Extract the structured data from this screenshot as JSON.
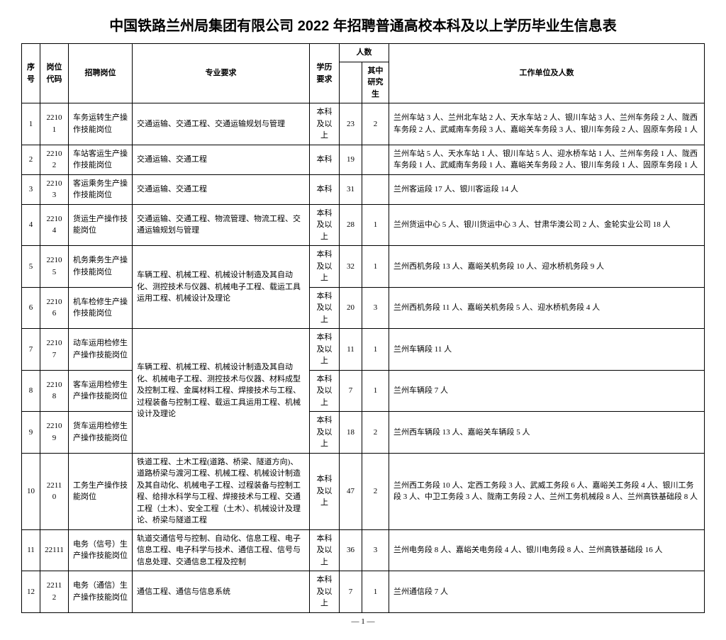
{
  "title": "中国铁路兰州局集团有限公司 2022 年招聘普通高校本科及以上学历毕业生信息表",
  "headers": {
    "seq": "序号",
    "code": "岗位代码",
    "post": "招聘岗位",
    "major": "专业要求",
    "edu": "学历要求",
    "count_group": "人数",
    "total": "",
    "grad": "其中研究生",
    "work": "工作单位及人数"
  },
  "rows": [
    {
      "seq": "1",
      "code": "22101",
      "post": "车务运转生产操作技能岗位",
      "major": "交通运输、交通工程、交通运输规划与管理",
      "edu": "本科及以上",
      "total": "23",
      "grad": "2",
      "work": "兰州车站 3 人、兰州北车站 2 人、天水车站 2 人、银川车站 3 人、兰州车务段 2 人、陇西车务段 2 人、武威南车务段 3 人、嘉峪关车务段 3 人、银川车务段 2 人、固原车务段 1 人",
      "major_rowspan": 1
    },
    {
      "seq": "2",
      "code": "22102",
      "post": "车站客运生产操作技能岗位",
      "major": "交通运输、交通工程",
      "edu": "本科",
      "total": "19",
      "grad": "",
      "work": "兰州车站 5 人、天水车站 1 人、银川车站 5 人、迎水桥车站 1 人、兰州车务段 1 人、陇西车务段 1 人、武威南车务段 1 人、嘉峪关车务段 2 人、银川车务段 1 人、固原车务段 1 人",
      "major_rowspan": 1
    },
    {
      "seq": "3",
      "code": "22103",
      "post": "客运乘务生产操作技能岗位",
      "major": "交通运输、交通工程",
      "edu": "本科",
      "total": "31",
      "grad": "",
      "work": "兰州客运段 17 人、银川客运段 14 人",
      "major_rowspan": 1
    },
    {
      "seq": "4",
      "code": "22104",
      "post": "货运生产操作技能岗位",
      "major": "交通运输、交通工程、物流管理、物流工程、交通运输规划与管理",
      "edu": "本科及以上",
      "total": "28",
      "grad": "1",
      "work": "兰州货运中心 5 人、银川货运中心 3 人、甘肃华澳公司 2 人、金轮实业公司 18 人",
      "major_rowspan": 1
    },
    {
      "seq": "5",
      "code": "22105",
      "post": "机务乘务生产操作技能岗位",
      "major": "车辆工程、机械工程、机械设计制造及其自动化、测控技术与仪器、机械电子工程、载运工具运用工程、机械设计及理论",
      "edu": "本科及以上",
      "total": "32",
      "grad": "1",
      "work": "兰州西机务段 13 人、嘉峪关机务段 10 人、迎水桥机务段 9 人",
      "major_rowspan": 1
    },
    {
      "seq": "6",
      "code": "22106",
      "post": "机车检修生产操作技能岗位",
      "major": "",
      "edu": "本科及以上",
      "total": "20",
      "grad": "3",
      "work": "兰州西机务段 11 人、嘉峪关机务段 5 人、迎水桥机务段 4 人",
      "major_rowspan": 0,
      "skip_major": true
    },
    {
      "seq": "7",
      "code": "22107",
      "post": "动车运用检修生产操作技能岗位",
      "major": "车辆工程、机械工程、机械设计制造及其自动化、机械电子工程、测控技术与仪器、材料成型及控制工程、金属材料工程、焊接技术与工程、过程装备与控制工程、载运工具运用工程、机械设计及理论",
      "edu": "本科及以上",
      "total": "11",
      "grad": "1",
      "work": "兰州车辆段 11 人",
      "major_rowspan": 3
    },
    {
      "seq": "8",
      "code": "22108",
      "post": "客车运用检修生产操作技能岗位",
      "major": "",
      "edu": "本科及以上",
      "total": "7",
      "grad": "1",
      "work": "兰州车辆段 7 人",
      "skip_major": true
    },
    {
      "seq": "9",
      "code": "22109",
      "post": "货车运用检修生产操作技能岗位",
      "major": "",
      "edu": "本科及以上",
      "total": "18",
      "grad": "2",
      "work": "兰州西车辆段 13 人、嘉峪关车辆段 5 人",
      "skip_major": true
    },
    {
      "seq": "10",
      "code": "22110",
      "post": "工务生产操作技能岗位",
      "major": "铁道工程、土木工程(道路、桥梁、隧道方向)、道路桥梁与渡河工程、机械工程、机械设计制造及其自动化、机械电子工程、过程装备与控制工程、给排水科学与工程、焊接技术与工程、交通工程（土木）、安全工程（土木）、机械设计及理论、桥梁与隧道工程",
      "edu": "本科及以上",
      "total": "47",
      "grad": "2",
      "work": "兰州西工务段 10 人、定西工务段 3 人、武威工务段 6 人、嘉峪关工务段 4 人、银川工务段 3 人、中卫工务段 3 人、陇南工务段 2 人、兰州工务机械段 8 人、兰州高铁基础段 8 人",
      "major_rowspan": 1
    },
    {
      "seq": "11",
      "code": "22111",
      "post": "电务（信号）生产操作技能岗位",
      "major": "轨道交通信号与控制、自动化、信息工程、电子信息工程、电子科学与技术、通信工程、信号与信息处理、交通信息工程及控制",
      "edu": "本科及以上",
      "total": "36",
      "grad": "3",
      "work": "兰州电务段 8 人、嘉峪关电务段 4 人、银川电务段 8 人、兰州高铁基础段 16 人",
      "major_rowspan": 1
    },
    {
      "seq": "12",
      "code": "22112",
      "post": "电务（通信）生产操作技能岗位",
      "major": "通信工程、通信与信息系统",
      "edu": "本科及以上",
      "total": "7",
      "grad": "1",
      "work": "兰州通信段 7 人",
      "major_rowspan": 1
    }
  ],
  "footer": "— 1 —",
  "row5_major_rowspan": 2
}
